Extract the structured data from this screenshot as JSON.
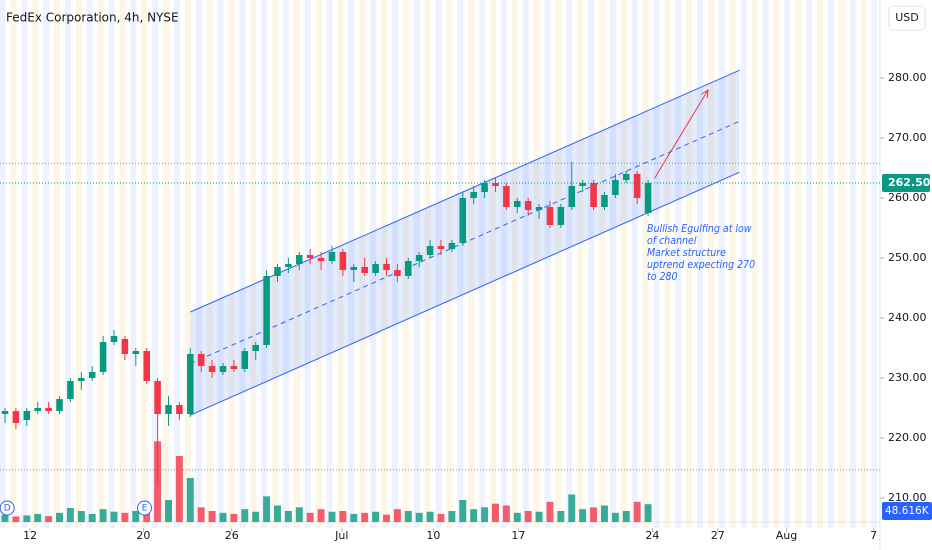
{
  "chart_data": {
    "type": "candlestick",
    "title": "FedEx Corporation, 4h, NYSE",
    "currency": "USD",
    "up_color": "#089981",
    "down_color": "#f23645",
    "open": [
      224,
      224.5,
      223,
      224.5,
      225,
      224.5,
      226.5,
      229.5,
      230,
      231,
      236,
      236.5,
      234,
      234.5,
      229.5,
      224,
      225.5,
      224,
      234,
      232,
      231,
      232,
      231.5,
      234.5,
      235.5,
      247,
      248.5,
      249,
      250.5,
      250,
      249.5,
      251,
      248,
      248.5,
      247.5,
      249,
      248,
      247,
      249.5,
      250.5,
      252,
      251.5,
      252.5,
      260,
      261,
      262.5,
      262,
      258.5,
      259.5,
      258,
      258.5,
      255.5,
      258.5,
      262,
      262.5,
      258.5,
      260.5,
      263,
      264,
      257.5
    ],
    "high": [
      225,
      225,
      225,
      226,
      226,
      227,
      230,
      231,
      232,
      237,
      238,
      237,
      235,
      235,
      230,
      227,
      226,
      235,
      234.5,
      233,
      232.5,
      233,
      235,
      236,
      248,
      249,
      250,
      251,
      251.5,
      251,
      252,
      251.5,
      249,
      250,
      249.5,
      250,
      249,
      250,
      251,
      253,
      253,
      253,
      261,
      262,
      263,
      263.5,
      262.5,
      260,
      260,
      259,
      259.5,
      259,
      266,
      263,
      263,
      261,
      264,
      264.5,
      264.5,
      263
    ],
    "low": [
      222.5,
      221.5,
      222,
      224,
      224,
      224,
      226,
      228,
      229.5,
      230.5,
      235.5,
      233,
      232,
      229,
      212,
      222,
      223,
      223.5,
      231,
      230,
      230.5,
      231,
      231,
      233,
      235,
      246,
      247.5,
      248,
      249,
      248,
      249,
      247,
      246,
      247,
      247,
      247,
      246,
      246.5,
      248.5,
      250,
      250.5,
      251,
      252,
      259,
      260,
      261,
      258,
      257.5,
      257,
      256.5,
      255,
      255,
      258,
      261,
      258,
      258,
      260,
      262.5,
      259,
      257
    ],
    "close": [
      224.5,
      222.5,
      224.5,
      225,
      224.5,
      226.5,
      229.5,
      230,
      231,
      236,
      237,
      234,
      234.5,
      229.5,
      224,
      225.5,
      224,
      234,
      232,
      231,
      232,
      231.5,
      234.5,
      235.5,
      247,
      248.5,
      249,
      250.5,
      250,
      249.5,
      251,
      248,
      248.5,
      247.5,
      249,
      248,
      247,
      249.5,
      250.5,
      252,
      251.5,
      252.5,
      260,
      261,
      262.5,
      262,
      258.5,
      259.5,
      258,
      258.5,
      255.5,
      258.5,
      262,
      262.5,
      258.5,
      260.5,
      263,
      264,
      260,
      262.5
    ],
    "volume": [
      20,
      15,
      18,
      22,
      16,
      25,
      38,
      30,
      22,
      35,
      28,
      25,
      30,
      45,
      220,
      60,
      180,
      120,
      40,
      30,
      25,
      22,
      35,
      28,
      70,
      45,
      30,
      40,
      25,
      35,
      28,
      30,
      22,
      25,
      28,
      20,
      35,
      30,
      25,
      28,
      22,
      30,
      60,
      35,
      40,
      50,
      45,
      25,
      30,
      28,
      55,
      30,
      75,
      35,
      40,
      45,
      25,
      30,
      55,
      48.616
    ],
    "xlim": [
      -0.46,
      80.28
    ],
    "xticks": [
      {
        "value": 2.3,
        "label": "12"
      },
      {
        "value": 12.7,
        "label": "20"
      },
      {
        "value": 20.8,
        "label": "26"
      },
      {
        "value": 30.9,
        "label": "Jul"
      },
      {
        "value": 39.3,
        "label": "10"
      },
      {
        "value": 47.1,
        "label": "17"
      },
      {
        "value": 59.4,
        "label": "24"
      },
      {
        "value": 65.4,
        "label": "27"
      },
      {
        "value": 71.7,
        "label": "Aug"
      },
      {
        "value": 79.7,
        "label": "7"
      }
    ],
    "ylim": [
      205,
      293
    ],
    "yticks": [
      {
        "value": 210,
        "label": "210.00"
      },
      {
        "value": 220,
        "label": "220.00"
      },
      {
        "value": 230,
        "label": "230.00"
      },
      {
        "value": 240,
        "label": "240.00"
      },
      {
        "value": 250,
        "label": "250.00"
      },
      {
        "value": 260,
        "label": "260.00"
      },
      {
        "value": 270,
        "label": "270.00"
      },
      {
        "value": 280,
        "label": "280.00"
      }
    ],
    "y2lim": [
      0,
      300
    ],
    "last_price": {
      "value": 262.5,
      "label": "262.50"
    },
    "last_volume": {
      "value": 48.616,
      "label": "48.616K"
    },
    "channel": {
      "x": [
        17,
        67.4
      ],
      "upper": [
        241,
        281.3
      ],
      "middle": [
        232.4,
        272.8
      ],
      "lower": [
        223.8,
        264.3
      ]
    },
    "arrow": {
      "x": [
        59.6,
        64.5
      ],
      "y": [
        263.3,
        278
      ]
    },
    "levels": [
      265.8,
      214.7
    ],
    "annotation": [
      "Bullish Egulfing at low",
      "of channel",
      "Market structure",
      "uptrend expecting 270",
      "to 280"
    ],
    "events": [
      {
        "label": "D",
        "x": 0.2
      },
      {
        "label": "E",
        "x": 12.8
      }
    ]
  }
}
